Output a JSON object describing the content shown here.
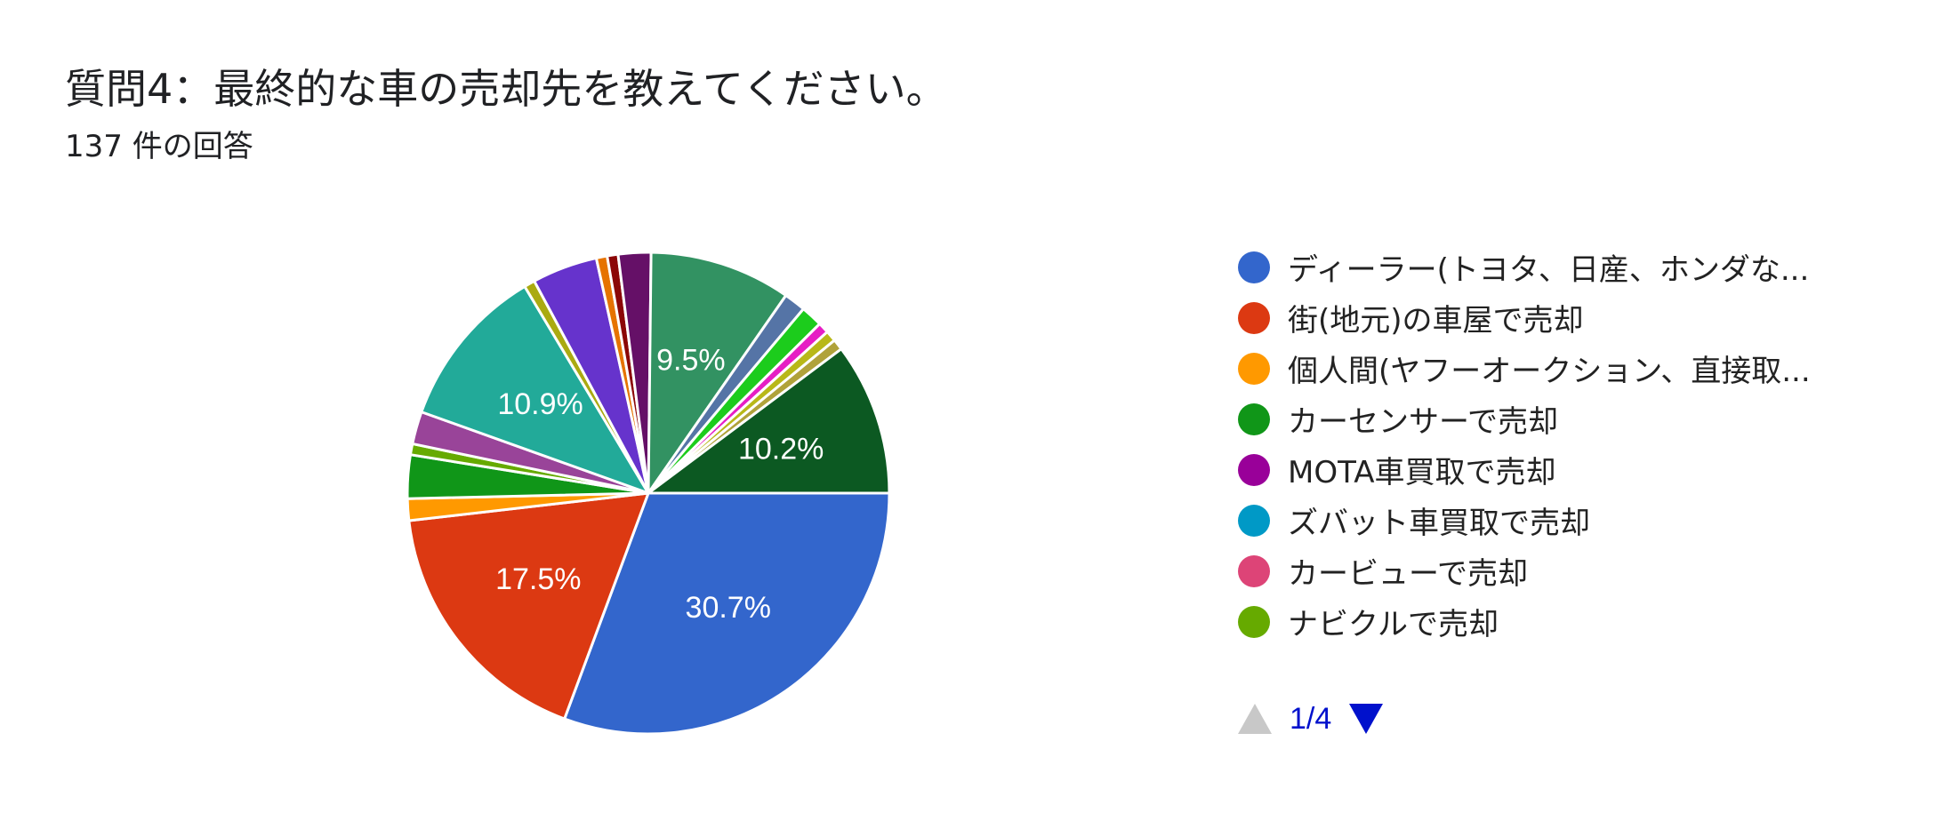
{
  "title": "質問4：最終的な車の売却先を教えてください。",
  "subtitle": "137 件の回答",
  "legend": {
    "items": [
      {
        "label": "ディーラー(トヨタ、日産、ホンダな...",
        "color": "#3366cc"
      },
      {
        "label": "街(地元)の車屋で売却",
        "color": "#dc3912"
      },
      {
        "label": "個人間(ヤフーオークション、直接取...",
        "color": "#ff9900"
      },
      {
        "label": "カーセンサーで売却",
        "color": "#109618"
      },
      {
        "label": "MOTA車買取で売却",
        "color": "#990099"
      },
      {
        "label": "ズバット車買取で売却",
        "color": "#0099c6"
      },
      {
        "label": "カービューで売却",
        "color": "#dd4477"
      },
      {
        "label": "ナビクルで売却",
        "color": "#66aa00"
      }
    ]
  },
  "pager": {
    "page": "1/4",
    "up_icon": "triangle-up-icon",
    "down_icon": "triangle-down-icon"
  },
  "chart_data": {
    "type": "pie",
    "title": "質問4：最終的な車の売却先を教えてください。",
    "total_responses": 137,
    "start_angle_deg": 90,
    "direction": "clockwise",
    "legend_position": "right",
    "slices": [
      {
        "value": 42,
        "color": "#3366cc",
        "label": "30.7%"
      },
      {
        "value": 24,
        "color": "#dc3912",
        "label": "17.5%"
      },
      {
        "value": 2,
        "color": "#ff9900",
        "label": ""
      },
      {
        "value": 4,
        "color": "#109618",
        "label": ""
      },
      {
        "value": 1,
        "color": "#66aa00",
        "label": ""
      },
      {
        "value": 3,
        "color": "#994499",
        "label": ""
      },
      {
        "value": 15,
        "color": "#22aa99",
        "label": "10.9%"
      },
      {
        "value": 1,
        "color": "#aaaa11",
        "label": ""
      },
      {
        "value": 6,
        "color": "#6633cc",
        "label": ""
      },
      {
        "value": 1,
        "color": "#e67300",
        "label": ""
      },
      {
        "value": 1,
        "color": "#8b0707",
        "label": ""
      },
      {
        "value": 3,
        "color": "#651067",
        "label": ""
      },
      {
        "value": 13,
        "color": "#329262",
        "label": "9.5%"
      },
      {
        "value": 2,
        "color": "#5574a6",
        "label": ""
      },
      {
        "value": 2,
        "color": "#1ccc1c",
        "label": ""
      },
      {
        "value": 1,
        "color": "#e61ec4",
        "label": ""
      },
      {
        "value": 1,
        "color": "#b8b818",
        "label": ""
      },
      {
        "value": 1,
        "color": "#b0a23a",
        "label": ""
      },
      {
        "value": 14,
        "color": "#0c5922",
        "label": "10.2%"
      }
    ]
  }
}
